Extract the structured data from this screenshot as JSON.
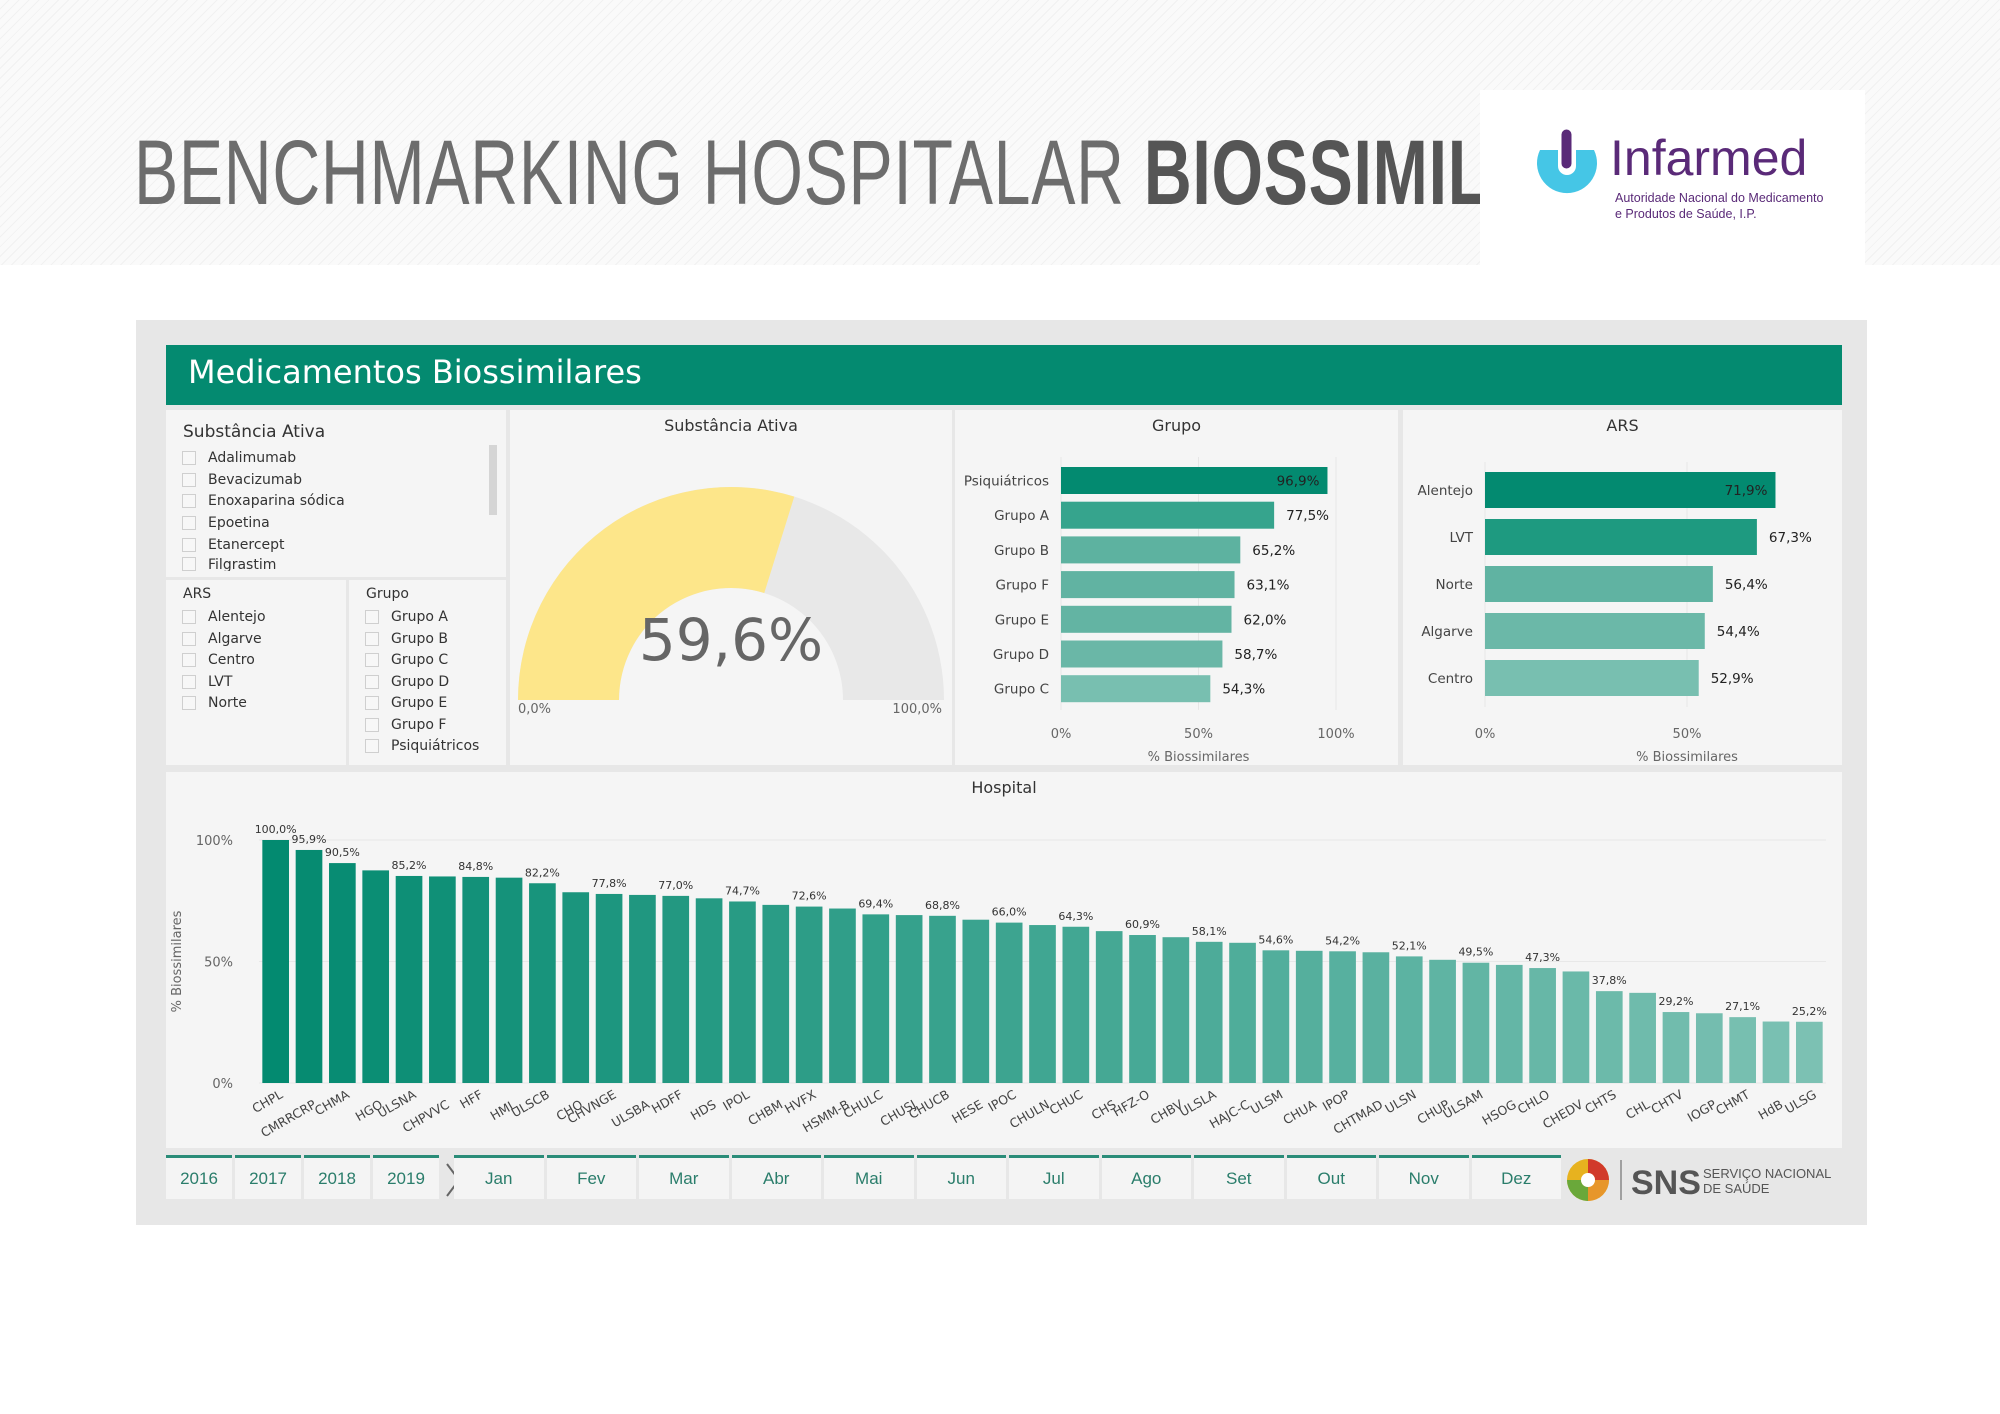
{
  "banner": {
    "title_light": "BENCHMARKING HOSPITALAR",
    "title_bold": "BIOSSIMILARES",
    "logo": {
      "name": "Infarmed",
      "subtitle_line1": "Autoridade Nacional do Medicamento",
      "subtitle_line2": "e Produtos de Saúde, I.P.",
      "colors": {
        "purple": "#5a2a78",
        "cyan": "#45c6e6"
      }
    }
  },
  "dashboard": {
    "header": "Medicamentos Biossimilares",
    "accent_color": "#048a70",
    "slicers": {
      "substancia": {
        "title": "Substância Ativa",
        "items": [
          "Adalimumab",
          "Bevacizumab",
          "Enoxaparina sódica",
          "Epoetina",
          "Etanercept",
          "Filgrastim"
        ]
      },
      "ars": {
        "title": "ARS",
        "items": [
          "Alentejo",
          "Algarve",
          "Centro",
          "LVT",
          "Norte"
        ]
      },
      "grupo": {
        "title": "Grupo",
        "items": [
          "Grupo A",
          "Grupo B",
          "Grupo C",
          "Grupo D",
          "Grupo E",
          "Grupo F",
          "Psiquiátricos"
        ]
      }
    },
    "gauge": {
      "title": "Substância Ativa",
      "value": 59.6,
      "value_label": "59,6%",
      "min_label": "0,0%",
      "max_label": "100,0%",
      "fill_color": "#fde68a",
      "track_color": "#e8e8e8"
    },
    "timeline": {
      "years": [
        "2016",
        "2017",
        "2018",
        "2019"
      ],
      "months": [
        "Jan",
        "Fev",
        "Mar",
        "Abr",
        "Mai",
        "Jun",
        "Jul",
        "Ago",
        "Set",
        "Out",
        "Nov",
        "Dez"
      ]
    },
    "sns_logo": {
      "abbr": "SNS",
      "line1": "SERVIÇO NACIONAL",
      "line2": "DE SAÚDE"
    }
  },
  "chart_data": [
    {
      "id": "grupo",
      "type": "bar",
      "orientation": "horizontal",
      "title": "Grupo",
      "xlabel": "% Biossimilares",
      "categories": [
        "Psiquiátricos",
        "Grupo A",
        "Grupo B",
        "Grupo F",
        "Grupo E",
        "Grupo D",
        "Grupo C"
      ],
      "values": [
        96.9,
        77.5,
        65.2,
        63.1,
        62.0,
        58.7,
        54.3
      ],
      "value_labels": [
        "96,9%",
        "77,5%",
        "65,2%",
        "63,1%",
        "62,0%",
        "58,7%",
        "54,3%"
      ],
      "xlim": [
        0,
        100
      ],
      "xticks": [
        "0%",
        "50%",
        "100%"
      ],
      "grid": true
    },
    {
      "id": "ars",
      "type": "bar",
      "orientation": "horizontal",
      "title": "ARS",
      "xlabel": "% Biossimilares",
      "categories": [
        "Alentejo",
        "LVT",
        "Norte",
        "Algarve",
        "Centro"
      ],
      "values": [
        71.9,
        67.3,
        56.4,
        54.4,
        52.9
      ],
      "value_labels": [
        "71,9%",
        "67,3%",
        "56,4%",
        "54,4%",
        "52,9%"
      ],
      "xlim": [
        0,
        75
      ],
      "xticks": [
        "0%",
        "50%"
      ],
      "grid": true
    },
    {
      "id": "hospital",
      "type": "bar",
      "orientation": "vertical",
      "title": "Hospital",
      "ylabel": "% Biossimilares",
      "ylim": [
        0,
        100
      ],
      "yticks": [
        "0%",
        "50%",
        "100%"
      ],
      "grid": true,
      "categories": [
        "CHPL",
        "CMRRCRP",
        "CHMA",
        "HGO",
        "ULSNA",
        "CHPVVC",
        "HFF",
        "HML",
        "ULSCB",
        "CHO",
        "CHVNGE",
        "ULSBA",
        "HDFF",
        "HDS",
        "IPOL",
        "CHBM",
        "HVFX",
        "HSMM-B",
        "CHULC",
        "CHUSJ",
        "CHUCB",
        "HESE",
        "IPOC",
        "CHULN",
        "CHUC",
        "CHS",
        "HFZ-O",
        "CHBV",
        "ULSLA",
        "HAJC-C",
        "ULSM",
        "CHUA",
        "IPOP",
        "CHTMAD",
        "ULSN",
        "CHUP",
        "ULSAM",
        "HSOG",
        "CHLO",
        "CHEDV",
        "CHTS",
        "CHL",
        "CHTV",
        "IOGP",
        "CHMT",
        "HdB",
        "ULSG"
      ],
      "values": [
        100.0,
        95.9,
        90.5,
        87.5,
        85.2,
        85.0,
        84.8,
        84.5,
        82.2,
        78.5,
        77.8,
        77.4,
        77.0,
        76.0,
        74.7,
        73.3,
        72.6,
        71.8,
        69.4,
        69.1,
        68.8,
        67.2,
        66.0,
        65.0,
        64.3,
        62.5,
        60.9,
        60.0,
        58.1,
        57.7,
        54.6,
        54.4,
        54.2,
        53.8,
        52.1,
        50.7,
        49.5,
        48.6,
        47.3,
        45.9,
        37.8,
        37.1,
        29.2,
        28.7,
        27.1,
        25.3,
        25.2
      ],
      "value_labels": [
        "100,0%",
        "95,9%",
        "90,5%",
        "",
        "85,2%",
        "",
        "84,8%",
        "",
        "82,2%",
        "",
        "77,8%",
        "",
        "77,0%",
        "",
        "74,7%",
        "",
        "72,6%",
        "",
        "69,4%",
        "",
        "68,8%",
        "",
        "66,0%",
        "",
        "64,3%",
        "",
        "60,9%",
        "",
        "58,1%",
        "",
        "54,6%",
        "",
        "54,2%",
        "",
        "52,1%",
        "",
        "49,5%",
        "",
        "47,3%",
        "",
        "37,8%",
        "",
        "29,2%",
        "",
        "27,1%",
        "",
        "25,2%"
      ]
    }
  ]
}
